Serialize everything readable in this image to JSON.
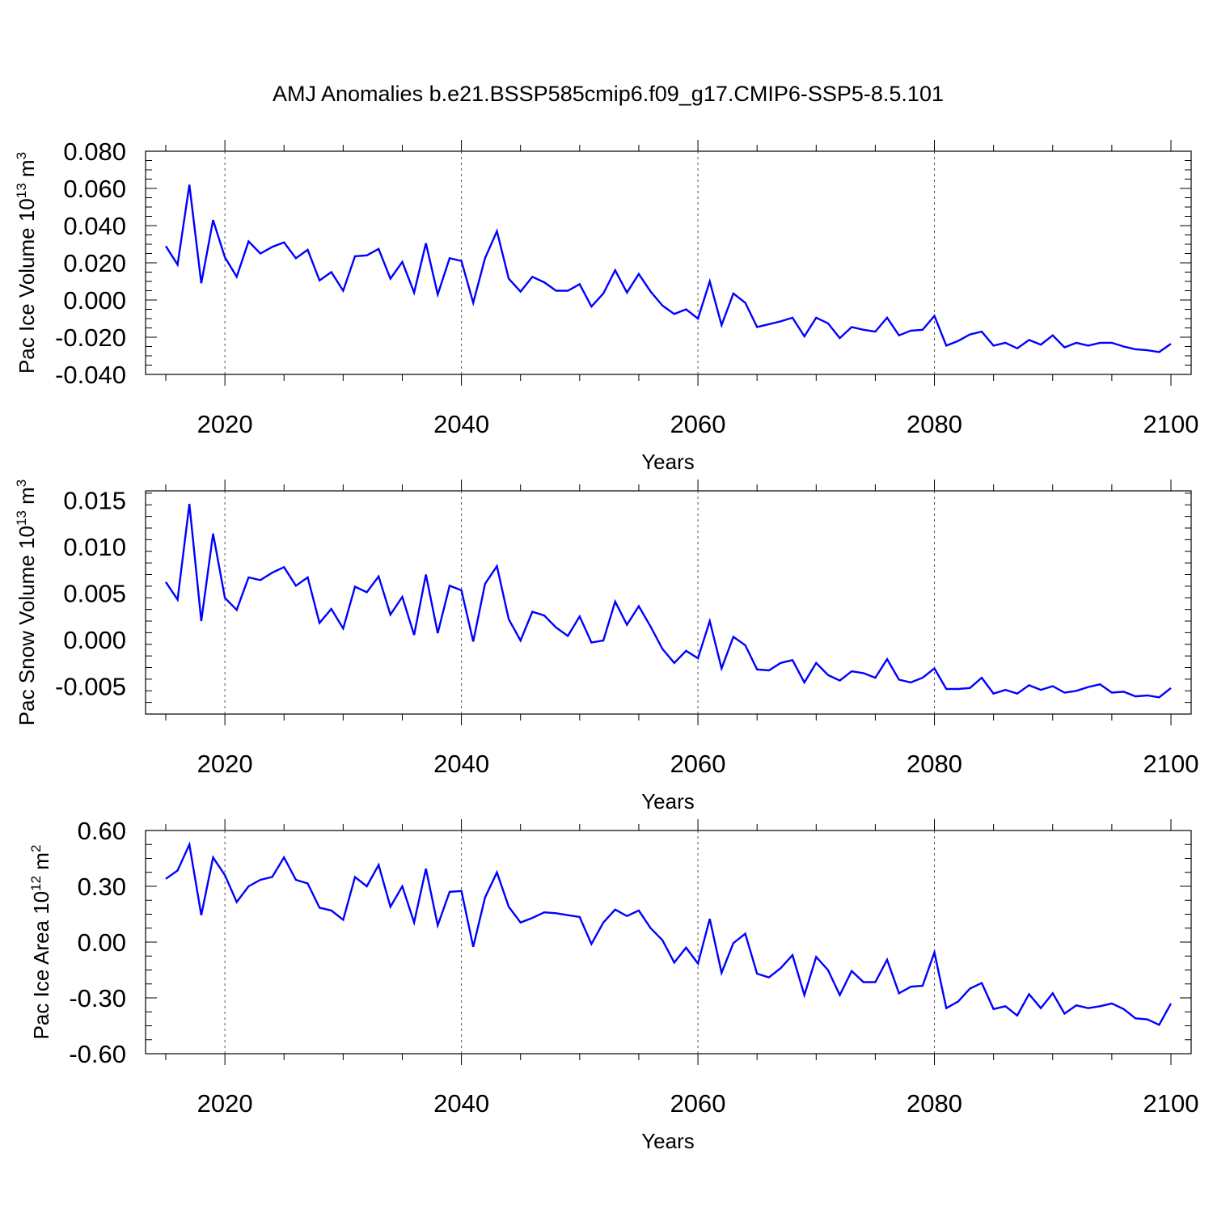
{
  "title": "AMJ Anomalies b.e21.BSSP585cmip6.f09_g17.CMIP6-SSP5-8.5.101",
  "line_color": "#0000ff",
  "chart_data": [
    {
      "type": "line",
      "ylabel": {
        "base": "Pac Ice Volume 10",
        "sup": "13",
        "mid": " m",
        "sup2": "3"
      },
      "xlabel": "Years",
      "xlim": [
        2015,
        2100
      ],
      "ylim": [
        -0.04,
        0.08
      ],
      "xticks": [
        2020,
        2040,
        2060,
        2080,
        2100
      ],
      "xtick_labels": [
        "2020",
        "2040",
        "2060",
        "2080",
        "2100"
      ],
      "yticks": [
        -0.04,
        -0.02,
        0.0,
        0.02,
        0.04,
        0.06,
        0.08
      ],
      "ytick_labels": [
        "-0.040",
        "-0.020",
        "0.000",
        "0.020",
        "0.040",
        "0.060",
        "0.080"
      ],
      "grid": "dashed vertical at 2020, 2040, 2060, 2080",
      "x": [
        2015,
        2016,
        2017,
        2018,
        2019,
        2020,
        2021,
        2022,
        2023,
        2024,
        2025,
        2026,
        2027,
        2028,
        2029,
        2030,
        2031,
        2032,
        2033,
        2034,
        2035,
        2036,
        2037,
        2038,
        2039,
        2040,
        2041,
        2042,
        2043,
        2044,
        2045,
        2046,
        2047,
        2048,
        2049,
        2050,
        2051,
        2052,
        2053,
        2054,
        2055,
        2056,
        2057,
        2058,
        2059,
        2060,
        2061,
        2062,
        2063,
        2064,
        2065,
        2066,
        2067,
        2068,
        2069,
        2070,
        2071,
        2072,
        2073,
        2074,
        2075,
        2076,
        2077,
        2078,
        2079,
        2080,
        2081,
        2082,
        2083,
        2084,
        2085,
        2086,
        2087,
        2088,
        2089,
        2090,
        2091,
        2092,
        2093,
        2094,
        2095,
        2096,
        2097,
        2098,
        2099,
        2100
      ],
      "values": [
        0.029,
        0.019,
        0.062,
        0.009,
        0.043,
        0.023,
        0.0125,
        0.0315,
        0.025,
        0.0285,
        0.031,
        0.0225,
        0.027,
        0.0105,
        0.015,
        0.005,
        0.0235,
        0.024,
        0.0275,
        0.0115,
        0.0205,
        0.004,
        0.0305,
        0.003,
        0.0225,
        0.021,
        -0.0015,
        0.0225,
        0.037,
        0.0115,
        0.0045,
        0.0125,
        0.0095,
        0.005,
        0.005,
        0.0085,
        -0.0035,
        0.0035,
        0.016,
        0.004,
        0.014,
        0.0045,
        -0.003,
        -0.0075,
        -0.005,
        -0.01,
        0.01,
        -0.0135,
        0.0035,
        -0.0015,
        -0.0145,
        -0.013,
        -0.0115,
        -0.0095,
        -0.0195,
        -0.0095,
        -0.0125,
        -0.0205,
        -0.0145,
        -0.016,
        -0.017,
        -0.0095,
        -0.019,
        -0.0165,
        -0.016,
        -0.0085,
        -0.0245,
        -0.022,
        -0.0185,
        -0.017,
        -0.0245,
        -0.023,
        -0.026,
        -0.0215,
        -0.024,
        -0.019,
        -0.0255,
        -0.023,
        -0.0245,
        -0.023,
        -0.023,
        -0.025,
        -0.0265,
        -0.027,
        -0.028,
        -0.0235
      ]
    },
    {
      "type": "line",
      "ylabel": {
        "base": "Pac Snow Volume 10",
        "sup": "13",
        "mid": " m",
        "sup2": "3"
      },
      "xlabel": "Years",
      "xlim": [
        2015,
        2100
      ],
      "ylim": [
        -0.008,
        0.016
      ],
      "xticks": [
        2020,
        2040,
        2060,
        2080,
        2100
      ],
      "xtick_labels": [
        "2020",
        "2040",
        "2060",
        "2080",
        "2100"
      ],
      "yticks": [
        -0.005,
        0.0,
        0.005,
        0.01,
        0.015
      ],
      "ytick_labels": [
        "-0.005",
        "0.000",
        "0.005",
        "0.010",
        "0.015"
      ],
      "grid": "dashed vertical at 2020, 2040, 2060, 2080",
      "x": [
        2015,
        2016,
        2017,
        2018,
        2019,
        2020,
        2021,
        2022,
        2023,
        2024,
        2025,
        2026,
        2027,
        2028,
        2029,
        2030,
        2031,
        2032,
        2033,
        2034,
        2035,
        2036,
        2037,
        2038,
        2039,
        2040,
        2041,
        2042,
        2043,
        2044,
        2045,
        2046,
        2047,
        2048,
        2049,
        2050,
        2051,
        2052,
        2053,
        2054,
        2055,
        2056,
        2057,
        2058,
        2059,
        2060,
        2061,
        2062,
        2063,
        2064,
        2065,
        2066,
        2067,
        2068,
        2069,
        2070,
        2071,
        2072,
        2073,
        2074,
        2075,
        2076,
        2077,
        2078,
        2079,
        2080,
        2081,
        2082,
        2083,
        2084,
        2085,
        2086,
        2087,
        2088,
        2089,
        2090,
        2091,
        2092,
        2093,
        2094,
        2095,
        2096,
        2097,
        2098,
        2099,
        2100
      ],
      "values": [
        0.0062,
        0.0043,
        0.0146,
        0.002,
        0.0114,
        0.0045,
        0.0032,
        0.0067,
        0.0064,
        0.0072,
        0.0078,
        0.0058,
        0.0067,
        0.0018,
        0.0033,
        0.0012,
        0.0057,
        0.0051,
        0.0068,
        0.0027,
        0.0046,
        0.0005,
        0.007,
        0.0007,
        0.0058,
        0.0053,
        -0.0002,
        0.006,
        0.0079,
        0.0022,
        -0.0001,
        0.003,
        0.0026,
        0.0013,
        0.0004,
        0.0025,
        -0.0003,
        -0.0001,
        0.0041,
        0.0016,
        0.0036,
        0.0014,
        -0.001,
        -0.0025,
        -0.0012,
        -0.002,
        0.002,
        -0.0031,
        0.0003,
        -0.0006,
        -0.0032,
        -0.0033,
        -0.0025,
        -0.0022,
        -0.0046,
        -0.0025,
        -0.0038,
        -0.0044,
        -0.0034,
        -0.0036,
        -0.0041,
        -0.0021,
        -0.0043,
        -0.0046,
        -0.0041,
        -0.0031,
        -0.0053,
        -0.0053,
        -0.0052,
        -0.0041,
        -0.0058,
        -0.0054,
        -0.0058,
        -0.0049,
        -0.0054,
        -0.005,
        -0.0057,
        -0.0055,
        -0.0051,
        -0.0048,
        -0.0057,
        -0.0056,
        -0.0061,
        -0.006,
        -0.0062,
        -0.0052
      ]
    },
    {
      "type": "line",
      "ylabel": {
        "base": "Pac Ice Area 10",
        "sup": "12",
        "mid": " m",
        "sup2": "2"
      },
      "xlabel": "Years",
      "xlim": [
        2015,
        2100
      ],
      "ylim": [
        -0.6,
        0.6
      ],
      "xticks": [
        2020,
        2040,
        2060,
        2080,
        2100
      ],
      "xtick_labels": [
        "2020",
        "2040",
        "2060",
        "2080",
        "2100"
      ],
      "yticks": [
        -0.6,
        -0.3,
        0.0,
        0.3,
        0.6
      ],
      "ytick_labels": [
        "-0.60",
        "-0.30",
        "0.00",
        "0.30",
        "0.60"
      ],
      "grid": "dashed vertical at 2020, 2040, 2060, 2080",
      "x": [
        2015,
        2016,
        2017,
        2018,
        2019,
        2020,
        2021,
        2022,
        2023,
        2024,
        2025,
        2026,
        2027,
        2028,
        2029,
        2030,
        2031,
        2032,
        2033,
        2034,
        2035,
        2036,
        2037,
        2038,
        2039,
        2040,
        2041,
        2042,
        2043,
        2044,
        2045,
        2046,
        2047,
        2048,
        2049,
        2050,
        2051,
        2052,
        2053,
        2054,
        2055,
        2056,
        2057,
        2058,
        2059,
        2060,
        2061,
        2062,
        2063,
        2064,
        2065,
        2066,
        2067,
        2068,
        2069,
        2070,
        2071,
        2072,
        2073,
        2074,
        2075,
        2076,
        2077,
        2078,
        2079,
        2080,
        2081,
        2082,
        2083,
        2084,
        2085,
        2086,
        2087,
        2088,
        2089,
        2090,
        2091,
        2092,
        2093,
        2094,
        2095,
        2096,
        2097,
        2098,
        2099,
        2100
      ],
      "values": [
        0.34,
        0.385,
        0.525,
        0.145,
        0.455,
        0.36,
        0.215,
        0.3,
        0.335,
        0.35,
        0.455,
        0.335,
        0.315,
        0.185,
        0.17,
        0.12,
        0.35,
        0.3,
        0.415,
        0.19,
        0.3,
        0.105,
        0.395,
        0.09,
        0.27,
        0.275,
        -0.025,
        0.24,
        0.375,
        0.19,
        0.105,
        0.13,
        0.16,
        0.155,
        0.145,
        0.135,
        -0.01,
        0.105,
        0.175,
        0.14,
        0.17,
        0.075,
        0.01,
        -0.11,
        -0.03,
        -0.115,
        0.125,
        -0.165,
        -0.005,
        0.045,
        -0.17,
        -0.19,
        -0.14,
        -0.07,
        -0.285,
        -0.08,
        -0.15,
        -0.285,
        -0.155,
        -0.215,
        -0.215,
        -0.095,
        -0.275,
        -0.24,
        -0.235,
        -0.055,
        -0.355,
        -0.32,
        -0.25,
        -0.22,
        -0.36,
        -0.345,
        -0.395,
        -0.28,
        -0.355,
        -0.275,
        -0.385,
        -0.34,
        -0.355,
        -0.345,
        -0.33,
        -0.36,
        -0.41,
        -0.415,
        -0.445,
        -0.33
      ]
    }
  ]
}
